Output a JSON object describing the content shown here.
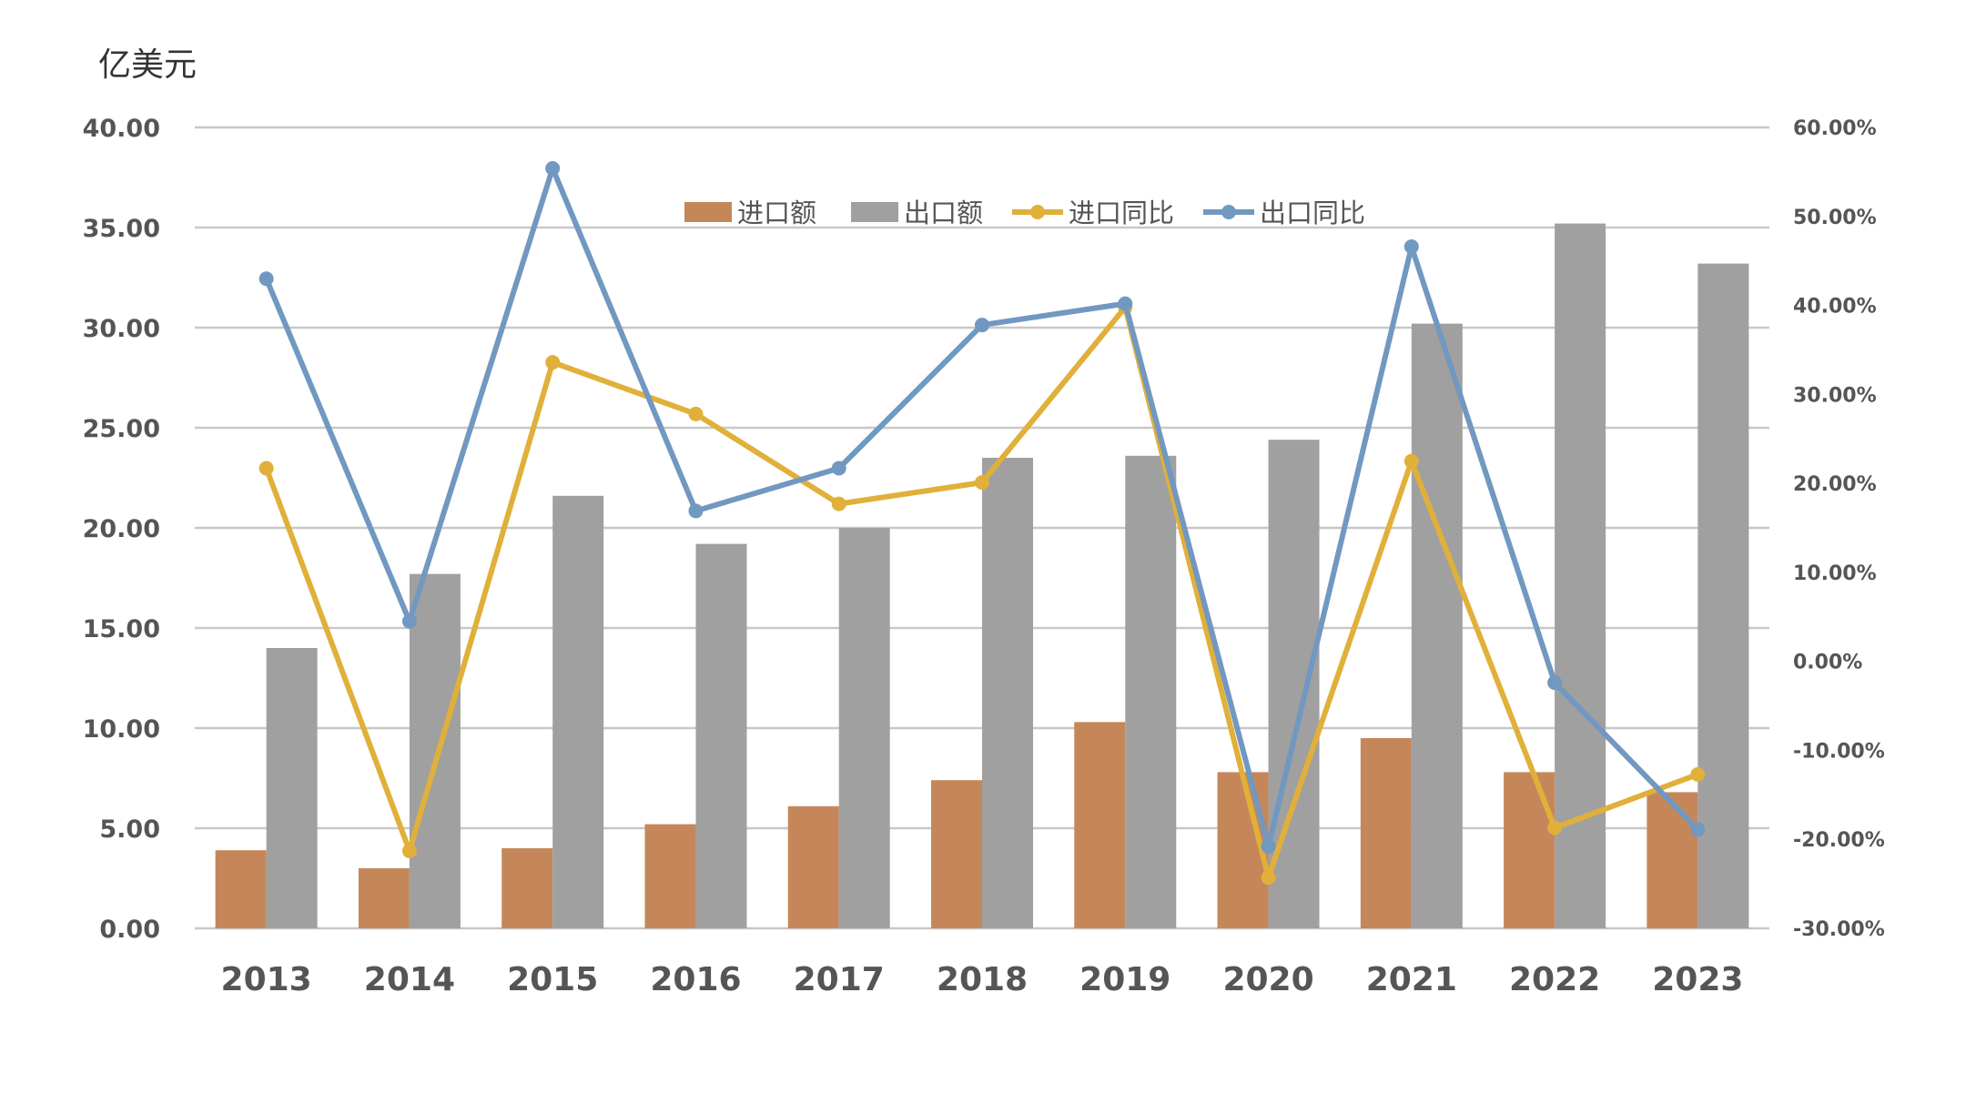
{
  "chart_data": {
    "type": "bar",
    "unit_label": "亿美元",
    "categories": [
      "2013",
      "2014",
      "2015",
      "2016",
      "2017",
      "2018",
      "2019",
      "2020",
      "2021",
      "2022",
      "2023"
    ],
    "y_left": {
      "ylim": [
        0,
        40
      ],
      "ticks": [
        "0.00",
        "5.00",
        "10.00",
        "15.00",
        "20.00",
        "25.00",
        "30.00",
        "35.00",
        "40.00"
      ]
    },
    "y_right": {
      "ylim": [
        -30,
        60
      ],
      "ticks": [
        "-30.00%",
        "-20.00%",
        "-10.00%",
        "0.00%",
        "10.00%",
        "20.00%",
        "30.00%",
        "40.00%",
        "50.00%",
        "60.00%"
      ]
    },
    "series": [
      {
        "name": "进口额",
        "kind": "bar",
        "axis": "left",
        "color": "#c5875a",
        "values": [
          3.9,
          3.0,
          4.0,
          5.2,
          6.1,
          7.4,
          10.3,
          7.8,
          9.5,
          7.8,
          6.8
        ]
      },
      {
        "name": "出口额",
        "kind": "bar",
        "axis": "left",
        "color": "#a0a0a0",
        "values": [
          14.0,
          17.7,
          21.6,
          19.2,
          20.0,
          23.5,
          23.6,
          24.4,
          30.2,
          35.2,
          33.2
        ]
      },
      {
        "name": "进口同比",
        "kind": "line",
        "axis": "right",
        "color": "#e0b03a",
        "values": [
          21.7,
          -21.3,
          33.6,
          27.8,
          17.7,
          20.1,
          39.8,
          -24.3,
          22.5,
          -18.7,
          -12.7
        ]
      },
      {
        "name": "出口同比",
        "kind": "line",
        "axis": "right",
        "color": "#7198c0",
        "values": [
          43.0,
          4.5,
          55.4,
          16.9,
          21.7,
          37.8,
          40.2,
          -20.8,
          46.6,
          -2.4,
          -18.9
        ]
      }
    ],
    "legend_position": "top-center",
    "grid": true
  }
}
